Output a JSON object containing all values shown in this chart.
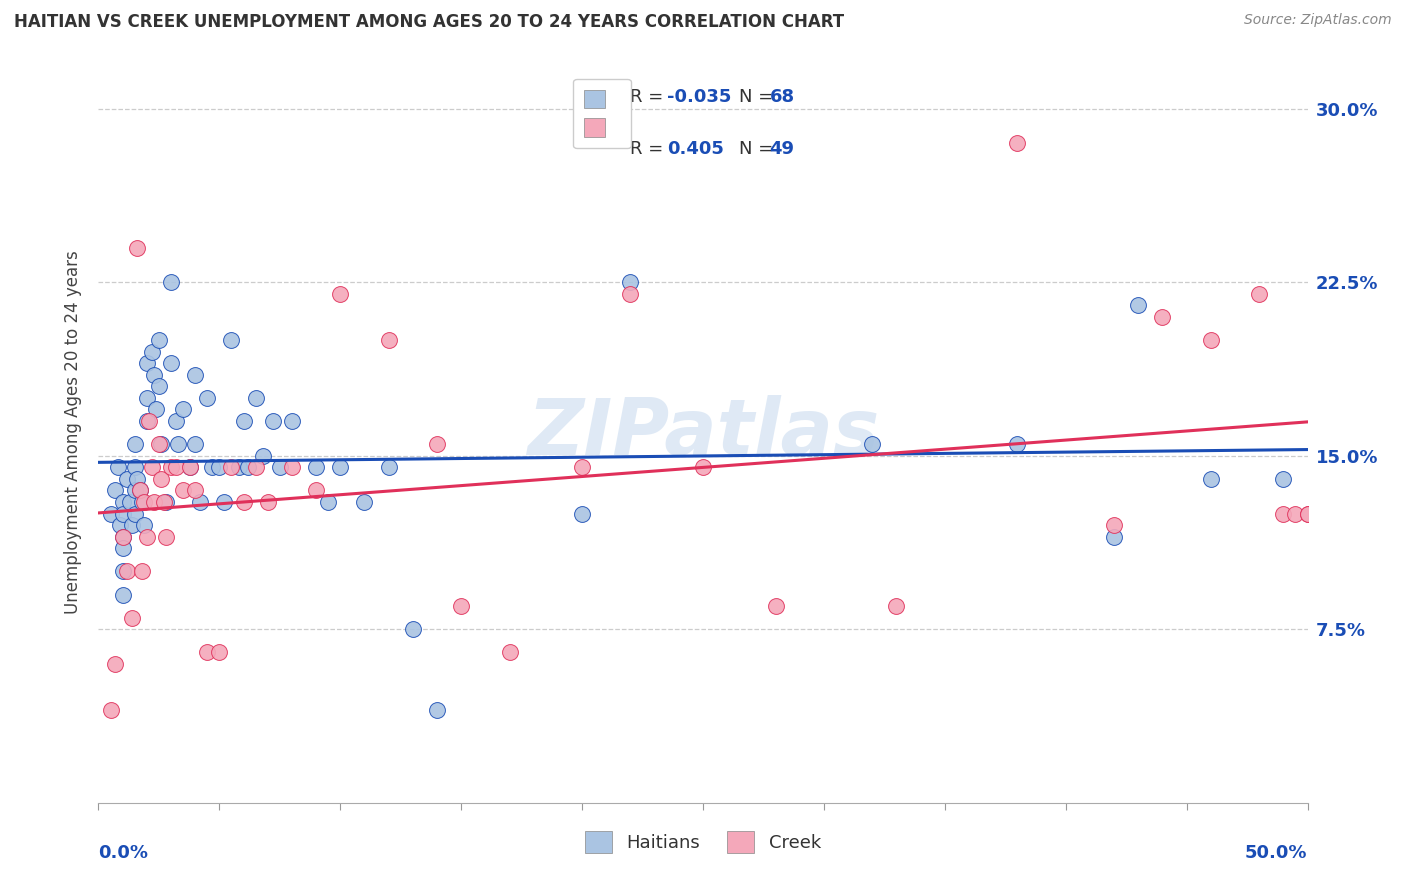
{
  "title": "HAITIAN VS CREEK UNEMPLOYMENT AMONG AGES 20 TO 24 YEARS CORRELATION CHART",
  "source": "Source: ZipAtlas.com",
  "ylabel": "Unemployment Among Ages 20 to 24 years",
  "ytick_labels": [
    "",
    "7.5%",
    "15.0%",
    "22.5%",
    "30.0%"
  ],
  "ytick_values": [
    0,
    0.075,
    0.15,
    0.225,
    0.3
  ],
  "xmin": 0.0,
  "xmax": 0.5,
  "ymin": 0.0,
  "ymax": 0.32,
  "haitians_color": "#aac4e2",
  "creek_color": "#f4a8ba",
  "trend_haitian_color": "#1a4db5",
  "trend_creek_color": "#e0305a",
  "watermark": "ZIPatlas",
  "haitian_R": -0.035,
  "haitian_N": 68,
  "creek_R": 0.405,
  "creek_N": 49,
  "haitian_x": [
    0.005,
    0.007,
    0.008,
    0.009,
    0.01,
    0.01,
    0.01,
    0.01,
    0.01,
    0.01,
    0.012,
    0.013,
    0.014,
    0.015,
    0.015,
    0.015,
    0.015,
    0.016,
    0.017,
    0.018,
    0.019,
    0.02,
    0.02,
    0.02,
    0.022,
    0.023,
    0.024,
    0.025,
    0.025,
    0.026,
    0.028,
    0.03,
    0.03,
    0.032,
    0.033,
    0.035,
    0.038,
    0.04,
    0.04,
    0.042,
    0.045,
    0.047,
    0.05,
    0.052,
    0.055,
    0.058,
    0.06,
    0.062,
    0.065,
    0.068,
    0.072,
    0.075,
    0.08,
    0.09,
    0.095,
    0.1,
    0.11,
    0.12,
    0.13,
    0.14,
    0.2,
    0.22,
    0.32,
    0.38,
    0.42,
    0.43,
    0.46,
    0.49
  ],
  "haitian_y": [
    0.125,
    0.135,
    0.145,
    0.12,
    0.13,
    0.125,
    0.115,
    0.11,
    0.1,
    0.09,
    0.14,
    0.13,
    0.12,
    0.155,
    0.145,
    0.135,
    0.125,
    0.14,
    0.135,
    0.13,
    0.12,
    0.19,
    0.175,
    0.165,
    0.195,
    0.185,
    0.17,
    0.2,
    0.18,
    0.155,
    0.13,
    0.225,
    0.19,
    0.165,
    0.155,
    0.17,
    0.145,
    0.185,
    0.155,
    0.13,
    0.175,
    0.145,
    0.145,
    0.13,
    0.2,
    0.145,
    0.165,
    0.145,
    0.175,
    0.15,
    0.165,
    0.145,
    0.165,
    0.145,
    0.13,
    0.145,
    0.13,
    0.145,
    0.075,
    0.04,
    0.125,
    0.225,
    0.155,
    0.155,
    0.115,
    0.215,
    0.14,
    0.14
  ],
  "creek_x": [
    0.005,
    0.007,
    0.01,
    0.012,
    0.014,
    0.016,
    0.017,
    0.018,
    0.019,
    0.02,
    0.021,
    0.022,
    0.023,
    0.025,
    0.026,
    0.027,
    0.028,
    0.03,
    0.032,
    0.035,
    0.038,
    0.04,
    0.045,
    0.05,
    0.055,
    0.06,
    0.065,
    0.07,
    0.08,
    0.09,
    0.1,
    0.12,
    0.14,
    0.15,
    0.17,
    0.2,
    0.22,
    0.25,
    0.28,
    0.33,
    0.38,
    0.42,
    0.44,
    0.46,
    0.48,
    0.49,
    0.495,
    0.5,
    0.5
  ],
  "creek_y": [
    0.04,
    0.06,
    0.115,
    0.1,
    0.08,
    0.24,
    0.135,
    0.1,
    0.13,
    0.115,
    0.165,
    0.145,
    0.13,
    0.155,
    0.14,
    0.13,
    0.115,
    0.145,
    0.145,
    0.135,
    0.145,
    0.135,
    0.065,
    0.065,
    0.145,
    0.13,
    0.145,
    0.13,
    0.145,
    0.135,
    0.22,
    0.2,
    0.155,
    0.085,
    0.065,
    0.145,
    0.22,
    0.145,
    0.085,
    0.085,
    0.285,
    0.12,
    0.21,
    0.2,
    0.22,
    0.125,
    0.125,
    0.125,
    0.125
  ]
}
